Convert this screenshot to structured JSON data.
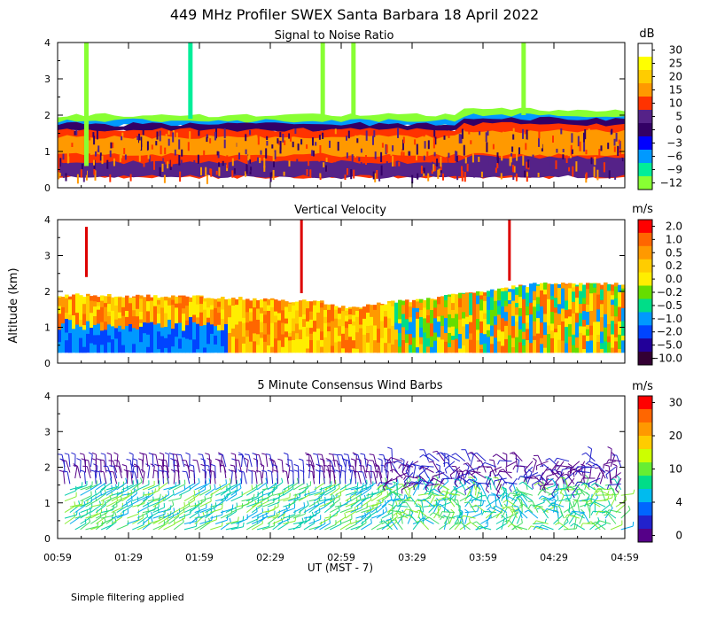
{
  "title": "449 MHz Profiler SWEX Santa Barbara 18 April 2022",
  "ylabel": "Altitude (km)",
  "xlabel": "UT  (MST - 7)",
  "footnote": "Simple filtering applied",
  "x_ticks": [
    "00:59",
    "01:29",
    "01:59",
    "02:29",
    "02:59",
    "03:29",
    "03:59",
    "04:29",
    "04:59"
  ],
  "x_range_minutes": [
    59,
    299
  ],
  "y_ticks": [
    "0",
    "1",
    "2",
    "3",
    "4"
  ],
  "y_range_km": [
    0,
    4
  ],
  "chart_data": [
    {
      "type": "heatmap",
      "title": "Signal to Noise Ratio",
      "unit": "dB",
      "colorbar_labels": [
        "30",
        "25",
        "20",
        "15",
        "10",
        "5",
        "0",
        "−3",
        "−6",
        "−9",
        "−12"
      ],
      "colors": [
        "#ffffff",
        "#ffff00",
        "#ffcc00",
        "#ff9900",
        "#ff3300",
        "#552288",
        "#330066",
        "#0000ff",
        "#0099ff",
        "#00ee99",
        "#88ff33"
      ],
      "altitude_range_km": [
        0.3,
        2.1
      ],
      "bands": [
        {
          "label": "top fringe (-12 to -9 dB)",
          "top_km": 2.0,
          "bottom_km": 1.75,
          "color": "#88ff33"
        },
        {
          "label": "-6 dB",
          "top_km": 1.85,
          "bottom_km": 1.7,
          "color": "#0099ff"
        },
        {
          "label": "0 dB",
          "top_km": 1.75,
          "bottom_km": 1.55,
          "color": "#330066"
        },
        {
          "label": "10 dB",
          "top_km": 1.6,
          "bottom_km": 0.3,
          "color": "#ff3300"
        },
        {
          "label": "15-20 dB",
          "top_km": 1.4,
          "bottom_km": 0.9,
          "color": "#ff9900"
        },
        {
          "label": "near-surface 5 dB",
          "top_km": 0.7,
          "bottom_km": 0.3,
          "color": "#552288"
        }
      ],
      "spikes": [
        {
          "time": "01:11",
          "from_km": 0.6,
          "to_km": 4.0,
          "color": "#88ff33"
        },
        {
          "time": "01:55",
          "from_km": 1.9,
          "to_km": 4.0,
          "color": "#00ee99"
        },
        {
          "time": "02:51",
          "from_km": 2.0,
          "to_km": 4.0,
          "color": "#88ff33"
        },
        {
          "time": "03:04",
          "from_km": 2.0,
          "to_km": 4.0,
          "color": "#88ff33"
        },
        {
          "time": "04:16",
          "from_km": 2.0,
          "to_km": 4.0,
          "color": "#88ff33"
        }
      ]
    },
    {
      "type": "heatmap",
      "title": "Vertical Velocity",
      "unit": "m/s",
      "colorbar_labels": [
        "2.0",
        "1.0",
        "0.5",
        "0.2",
        "0.0",
        "−0.2",
        "−0.5",
        "−1.0",
        "−2.0",
        "−5.0",
        "−10.0"
      ],
      "colors": [
        "#ff0000",
        "#ff6600",
        "#ff9900",
        "#ffcc00",
        "#ffee00",
        "#66dd00",
        "#00dd88",
        "#0099ff",
        "#0044ff",
        "#220099",
        "#330033"
      ],
      "altitude_range_km": [
        0.3,
        2.3
      ],
      "top_km_profile": [
        [
          59,
          1.9
        ],
        [
          120,
          1.85
        ],
        [
          170,
          1.7
        ],
        [
          180,
          1.55
        ],
        [
          215,
          1.8
        ],
        [
          260,
          2.2
        ],
        [
          299,
          2.2
        ]
      ],
      "spikes": [
        {
          "time": "01:11",
          "from_km": 2.4,
          "to_km": 3.8,
          "color": "#dd0000"
        },
        {
          "time": "02:42",
          "from_km": 1.95,
          "to_km": 4.0,
          "color": "#dd0000"
        },
        {
          "time": "04:10",
          "from_km": 2.3,
          "to_km": 4.0,
          "color": "#dd0000"
        }
      ]
    },
    {
      "type": "wind_barbs",
      "title": "5 Minute Consensus Wind Barbs",
      "unit": "m/s",
      "colorbar_labels": [
        "30",
        "20",
        "10",
        "4",
        "0"
      ],
      "colors": [
        "#ff0000",
        "#ff6600",
        "#ff9900",
        "#ffcc00",
        "#ccff00",
        "#66ee33",
        "#00dd88",
        "#00bbee",
        "#0066ff",
        "#2222cc",
        "#550088"
      ],
      "altitude_range_km": [
        0.2,
        2.4
      ]
    }
  ]
}
